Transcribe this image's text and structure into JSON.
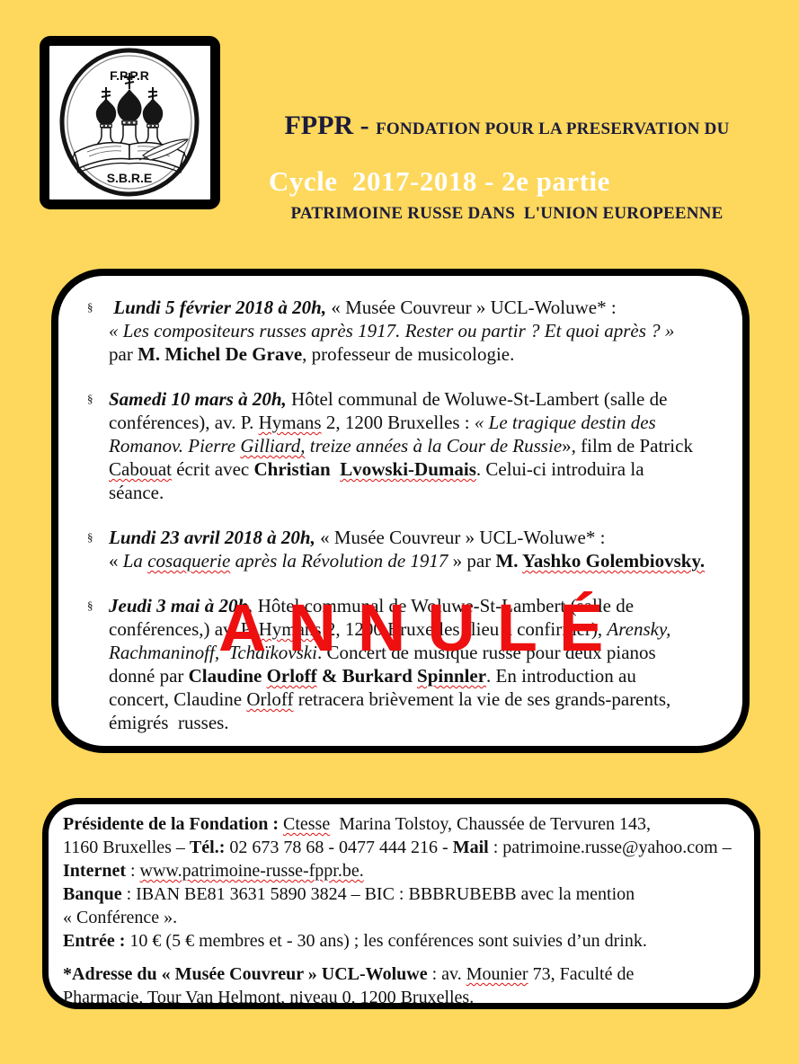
{
  "colors": {
    "background": "#FDD85C",
    "title": "#1b1b3b",
    "subtitle": "#ffffff",
    "stamp_red": "#ee1010",
    "squiggle_red": "#e01010",
    "box_background": "#ffffff",
    "border": "#000000"
  },
  "logo": {
    "top_label": "F.P.P.R",
    "bottom_label": "S.B.R.E"
  },
  "header": {
    "acronym": "FPPR - ",
    "line1_rest": "FONDATION POUR LA PRESERVATION DU",
    "line2": "PATRIMOINE RUSSE DANS  L'UNION EUROPEENNE",
    "subtitle": "Cycle  2017-2018 - 2e partie"
  },
  "stamp": {
    "label": "ANNULÉ"
  },
  "events": [
    {
      "bullet": "§",
      "lines": [
        [
          {
            "t": " Lundi 5 février 2018 à 20h,",
            "b": true,
            "i": true
          },
          {
            "t": " « Musée Couvreur » UCL-Woluwe* :"
          }
        ],
        [
          {
            "t": "« Les compositeurs russes après 1917. Rester ou partir ? Et quoi après ? »",
            "i": true
          }
        ],
        [
          {
            "t": "par "
          },
          {
            "t": "M. Michel De Grave",
            "b": true
          },
          {
            "t": ", professeur de musicologie."
          }
        ]
      ]
    },
    {
      "bullet": "§",
      "lines": [
        [
          {
            "t": "Samedi 10 mars à 20h,",
            "b": true,
            "i": true
          },
          {
            "t": " Hôtel communal de Woluwe-St-Lambert (salle de"
          }
        ],
        [
          {
            "t": "conférences), av. P. "
          },
          {
            "t": "Hymans",
            "sp": true
          },
          {
            "t": " 2, 1200 Bruxelles : "
          },
          {
            "t": "« Le tragique destin des",
            "i": true
          }
        ],
        [
          {
            "t": "Romanov. Pierre ",
            "i": true
          },
          {
            "t": "Gilliard,",
            "i": true,
            "sp": true
          },
          {
            "t": " treize années à la Cour de Russie",
            "i": true
          },
          {
            "t": "», film de Patrick"
          }
        ],
        [
          {
            "t": "Cabouat",
            "sp": true
          },
          {
            "t": " écrit avec "
          },
          {
            "t": "Christian  ",
            "b": true
          },
          {
            "t": "Lvowski-Dumais",
            "b": true,
            "sp": true
          },
          {
            "t": ". Celui-ci introduira la"
          }
        ],
        [
          {
            "t": "séance."
          }
        ]
      ]
    },
    {
      "bullet": "§",
      "lines": [
        [
          {
            "t": "Lundi 23 avril 2018 à 20h,",
            "b": true,
            "i": true
          },
          {
            "t": " « Musée Couvreur » UCL-Woluwe* :"
          }
        ],
        [
          {
            "t": "« "
          },
          {
            "t": "La ",
            "i": true
          },
          {
            "t": "cosaquerie",
            "i": true,
            "sp": true
          },
          {
            "t": " après la Révolution de 1917",
            "i": true
          },
          {
            "t": " » par "
          },
          {
            "t": "M. ",
            "b": true
          },
          {
            "t": "Yashko Golembiovsky.",
            "b": true,
            "sp": true
          }
        ]
      ]
    },
    {
      "bullet": "§",
      "lines": [
        [
          {
            "t": "Jeudi 3 mai à 20h,",
            "b": true,
            "i": true
          },
          {
            "t": " Hôtel communal de Woluwe-St-Lambert (salle de"
          }
        ],
        [
          {
            "t": "conférences,) av. P. "
          },
          {
            "t": "Hymans",
            "sp": true
          },
          {
            "t": " 2, 1200 Bruxelles (lieu à confirmer), "
          },
          {
            "t": "Arensky,",
            "i": true
          }
        ],
        [
          {
            "t": "Rachmaninoff,  Tchaïkovski",
            "i": true
          },
          {
            "t": ". Concert de musique russe pour deux pianos"
          }
        ],
        [
          {
            "t": "donné par "
          },
          {
            "t": "Claudine ",
            "b": true
          },
          {
            "t": "Orloff",
            "b": true,
            "sp": true
          },
          {
            "t": " & ",
            "b": true
          },
          {
            "t": "Burkard ",
            "b": true
          },
          {
            "t": "Spinnler",
            "b": true,
            "sp": true
          },
          {
            "t": ". En introduction au"
          }
        ],
        [
          {
            "t": "concert, Claudine "
          },
          {
            "t": "Orloff",
            "sp": true
          },
          {
            "t": " retracera brièvement la vie de ses grands-parents,"
          }
        ],
        [
          {
            "t": "émigrés  russes."
          }
        ]
      ]
    }
  ],
  "footer": {
    "paragraphs": [
      [
        [
          {
            "t": "Présidente de la Fondation :",
            "b": true
          },
          {
            "t": " "
          },
          {
            "t": "Ctesse",
            "sp": true
          },
          {
            "t": "  Marina Tolstoy, Chaussée de Tervuren 143,"
          }
        ],
        [
          {
            "t": "1160 Bruxelles – "
          },
          {
            "t": "Tél.:",
            "b": true
          },
          {
            "t": " 02 673 78 68 - 0477 444 216 - "
          },
          {
            "t": "Mail",
            "b": true
          },
          {
            "t": " : patrimoine.russe@yahoo.com –"
          }
        ],
        [
          {
            "t": "Internet",
            "b": true
          },
          {
            "t": " : "
          },
          {
            "t": "www.patrimoine-russe-fppr.be.",
            "sp": true
          }
        ],
        [
          {
            "t": "Banque",
            "b": true
          },
          {
            "t": " : IBAN BE81 3631 5890 3824 – BIC : BBBRUBEBB avec la mention"
          }
        ],
        [
          {
            "t": "« Conférence »."
          }
        ],
        [
          {
            "t": "Entrée :",
            "b": true
          },
          {
            "t": " 10 € (5 € membres et - 30 ans) ; les conférences sont suivies d’un drink."
          }
        ]
      ],
      [
        [
          {
            "t": "*Adresse du « Musée Couvreur » UCL-Woluwe",
            "b": true
          },
          {
            "t": " : av. "
          },
          {
            "t": "Mounier",
            "sp": true
          },
          {
            "t": " 73, Faculté de"
          }
        ],
        [
          {
            "t": "Pharmacie, Tour Van Helmont, niveau 0, 1200 Bruxelles."
          }
        ]
      ]
    ]
  }
}
